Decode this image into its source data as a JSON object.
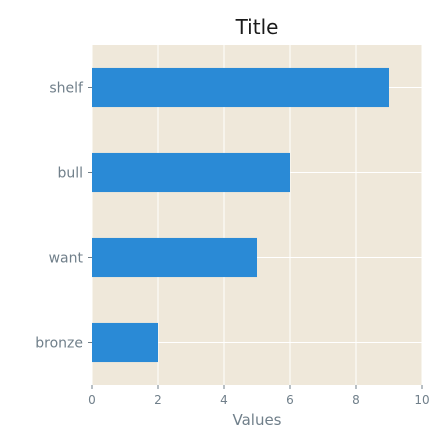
{
  "chart_data": {
    "type": "bar",
    "orientation": "horizontal",
    "title": "Title",
    "xlabel": "Values",
    "ylabel": "",
    "categories": [
      "bronze",
      "want",
      "bull",
      "shelf"
    ],
    "values": [
      2,
      5,
      6,
      9
    ],
    "xlim": [
      0,
      10
    ],
    "xticks": [
      0,
      2,
      4,
      6,
      8,
      10
    ],
    "grid": true,
    "colors": {
      "bar": "#2a8ad6",
      "plot_background": "#efe8da",
      "grid": "#ffffff",
      "tick_text": "#707f8a",
      "title": "#1a1a1a"
    }
  }
}
